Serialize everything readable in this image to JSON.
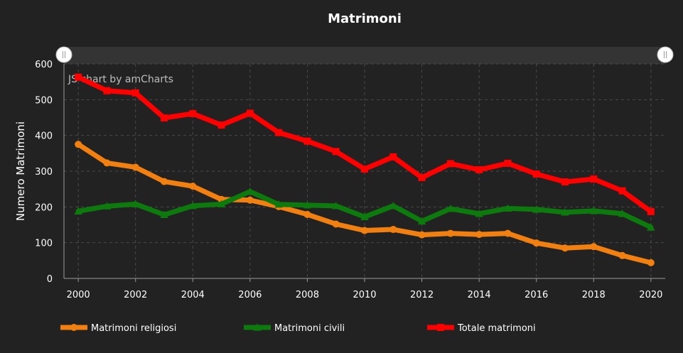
{
  "chart_data": {
    "type": "line",
    "title": "Matrimoni",
    "ylabel": "Numero Matrimoni",
    "xlabel": "",
    "credit": "JS chart by amCharts",
    "ylim": [
      0,
      600
    ],
    "yticks": [
      0,
      100,
      200,
      300,
      400,
      500,
      600
    ],
    "xlim": [
      1999.5,
      2020.5
    ],
    "xticks": [
      2000,
      2002,
      2004,
      2006,
      2008,
      2010,
      2012,
      2014,
      2016,
      2018,
      2020
    ],
    "grid": true,
    "legend_position": "bottom",
    "x": [
      2000,
      2001,
      2002,
      2003,
      2004,
      2005,
      2006,
      2007,
      2008,
      2009,
      2010,
      2011,
      2012,
      2013,
      2014,
      2015,
      2016,
      2017,
      2018,
      2019,
      2020
    ],
    "series": [
      {
        "name": "Matrimoni religiosi",
        "color": "#f28010",
        "marker": "circle",
        "values": [
          375,
          323,
          311,
          271,
          258,
          221,
          219,
          201,
          179,
          152,
          134,
          137,
          122,
          126,
          123,
          126,
          99,
          85,
          89,
          64,
          44
        ]
      },
      {
        "name": "Matrimoni civili",
        "color": "#0c7a0c",
        "marker": "triangle",
        "values": [
          188,
          202,
          208,
          178,
          203,
          208,
          243,
          207,
          205,
          203,
          172,
          203,
          160,
          195,
          181,
          196,
          193,
          185,
          189,
          181,
          143
        ]
      },
      {
        "name": "Totale matrimoni",
        "color": "#ff0000",
        "marker": "square",
        "values": [
          563,
          525,
          519,
          449,
          461,
          429,
          462,
          408,
          384,
          355,
          306,
          340,
          282,
          321,
          304,
          322,
          292,
          270,
          278,
          245,
          187
        ]
      }
    ]
  }
}
